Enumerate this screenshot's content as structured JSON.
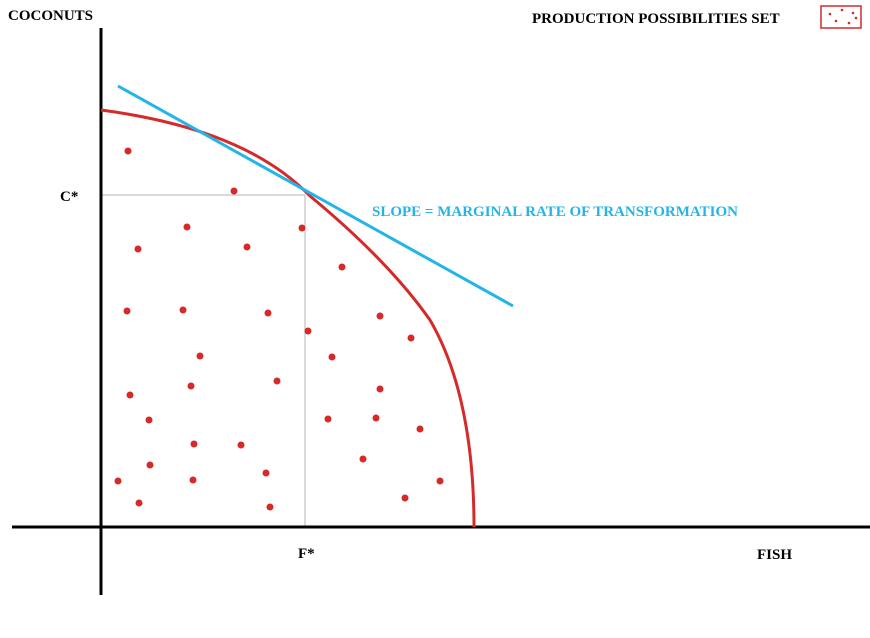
{
  "diagram": {
    "y_axis_label": "COCONUTS",
    "x_axis_label": "FISH",
    "y_marker_label": "C*",
    "x_marker_label": "F*",
    "slope_label": "SLOPE = MARGINAL RATE OF TRANSFORMATION",
    "legend_label": "PRODUCTION POSSIBILITIES SET",
    "frontier_curve": "production-possibilities-frontier",
    "tangent_line": "marginal-rate-of-transformation-tangent"
  },
  "colors": {
    "frontier": "#d42a2a",
    "tangent": "#23b5e8",
    "dots": "#d42a2a",
    "axes": "#000000",
    "guides": "#b4b4b4",
    "text": "#000000"
  }
}
